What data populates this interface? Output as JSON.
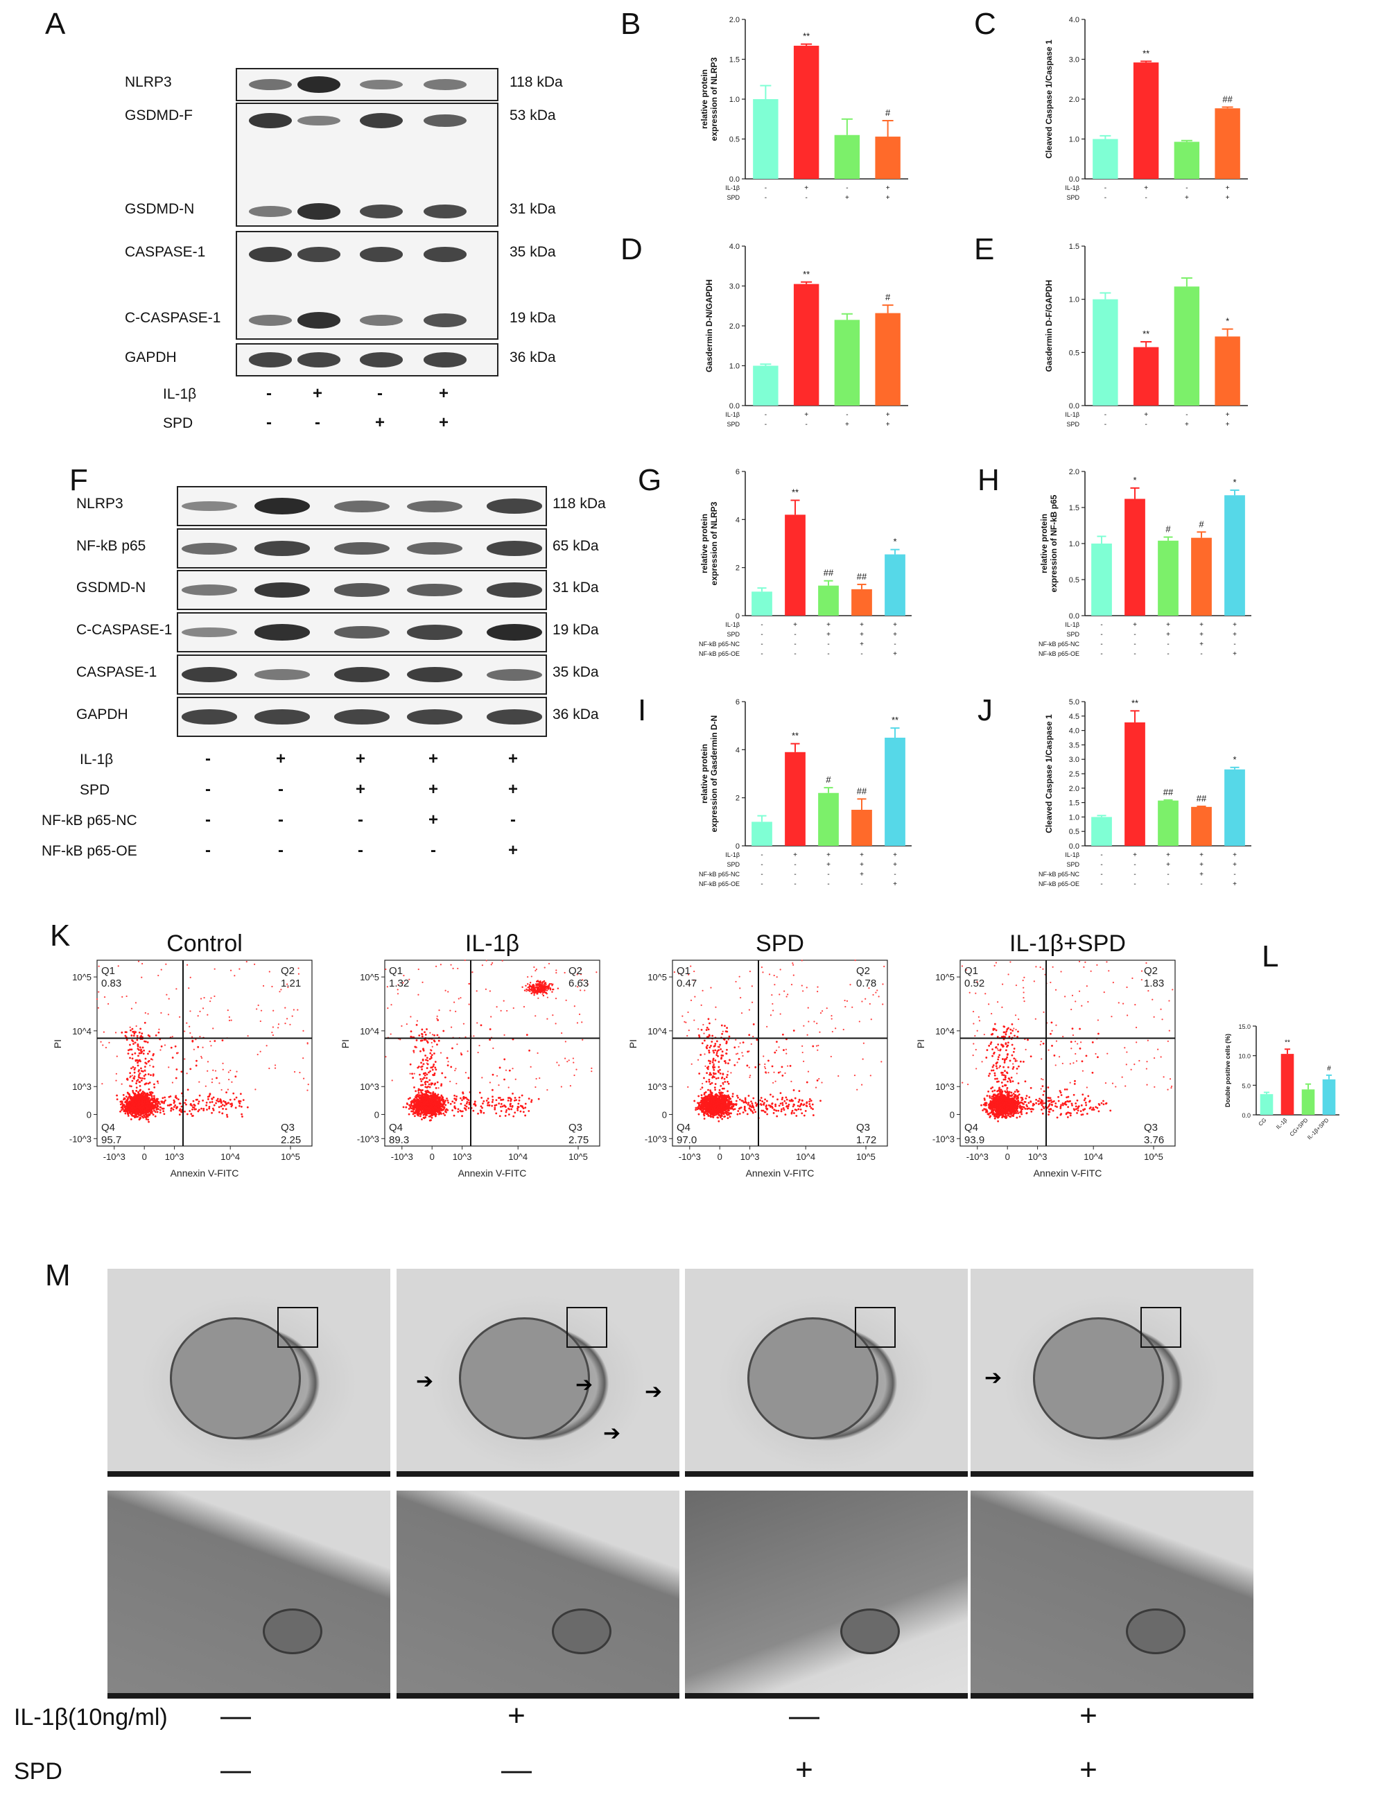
{
  "panels": {
    "A": "A",
    "B": "B",
    "C": "C",
    "D": "D",
    "E": "E",
    "F": "F",
    "G": "G",
    "H": "H",
    "I": "I",
    "J": "J",
    "K": "K",
    "L": "L",
    "M": "M"
  },
  "blotA": {
    "rows": [
      {
        "label": "NLRP3",
        "kda": "118 kDa"
      },
      {
        "label": "GSDMD-F",
        "kda": "53 kDa"
      },
      {
        "label": "GSDMD-N",
        "kda": "31 kDa"
      },
      {
        "label": "CASPASE-1",
        "kda": "35 kDa"
      },
      {
        "label": "C-CASPASE-1",
        "kda": "19 kDa"
      },
      {
        "label": "GAPDH",
        "kda": "36 kDa"
      }
    ],
    "treatments": [
      {
        "label": "IL-1β",
        "signs": [
          "-",
          "+",
          "-",
          "+"
        ]
      },
      {
        "label": "SPD",
        "signs": [
          "-",
          "-",
          "+",
          "+"
        ]
      }
    ]
  },
  "blotF": {
    "rows": [
      {
        "label": "NLRP3",
        "kda": "118 kDa"
      },
      {
        "label": "NF-kB p65",
        "kda": "65 kDa"
      },
      {
        "label": "GSDMD-N",
        "kda": "31 kDa"
      },
      {
        "label": "C-CASPASE-1",
        "kda": "19 kDa"
      },
      {
        "label": "CASPASE-1",
        "kda": "35 kDa"
      },
      {
        "label": "GAPDH",
        "kda": "36 kDa"
      }
    ],
    "treatments": [
      {
        "label": "IL-1β",
        "signs": [
          "-",
          "+",
          "+",
          "+",
          "+"
        ]
      },
      {
        "label": "SPD",
        "signs": [
          "-",
          "-",
          "+",
          "+",
          "+"
        ]
      },
      {
        "label": "NF-kB p65-NC",
        "signs": [
          "-",
          "-",
          "-",
          "+",
          "-"
        ]
      },
      {
        "label": "NF-kB p65-OE",
        "signs": [
          "-",
          "-",
          "-",
          "-",
          "+"
        ]
      }
    ]
  },
  "colors": {
    "group1": "#7fffd4",
    "group2": "#ff2a2a",
    "group3": "#7cf06a",
    "group4": "#ff6a2a",
    "group5": "#56d8e8"
  },
  "chart_data": [
    {
      "id": "B",
      "type": "bar",
      "ylabel": "relative protein expression of NLRP3",
      "ylim": [
        0,
        2.0
      ],
      "yticks": [
        "0.0",
        "0.5",
        "1.0",
        "1.5",
        "2.0"
      ],
      "values": [
        1.0,
        1.67,
        0.55,
        0.53
      ],
      "errors": [
        0.17,
        0.02,
        0.2,
        0.2
      ],
      "annotations": [
        "",
        "**",
        "",
        "#"
      ],
      "treatments": [
        {
          "label": "IL-1β",
          "signs": [
            "-",
            "+",
            "-",
            "+"
          ]
        },
        {
          "label": "SPD",
          "signs": [
            "-",
            "-",
            "+",
            "+"
          ]
        }
      ]
    },
    {
      "id": "C",
      "type": "bar",
      "ylabel": "Cleaved Caspase 1/Caspase 1",
      "ylim": [
        0,
        4.0
      ],
      "yticks": [
        "0.0",
        "1.0",
        "2.0",
        "3.0",
        "4.0"
      ],
      "values": [
        1.0,
        2.92,
        0.93,
        1.77
      ],
      "errors": [
        0.08,
        0.03,
        0.03,
        0.03
      ],
      "annotations": [
        "",
        "**",
        "",
        "##"
      ],
      "treatments": [
        {
          "label": "IL-1β",
          "signs": [
            "-",
            "+",
            "-",
            "+"
          ]
        },
        {
          "label": "SPD",
          "signs": [
            "-",
            "-",
            "+",
            "+"
          ]
        }
      ]
    },
    {
      "id": "D",
      "type": "bar",
      "ylabel": "Gasdermin D-N/GAPDH",
      "ylim": [
        0,
        4.0
      ],
      "yticks": [
        "0.0",
        "1.0",
        "2.0",
        "3.0",
        "4.0"
      ],
      "values": [
        1.0,
        3.05,
        2.15,
        2.32
      ],
      "errors": [
        0.04,
        0.05,
        0.15,
        0.2
      ],
      "annotations": [
        "",
        "**",
        "",
        "#"
      ],
      "treatments": [
        {
          "label": "IL-1β",
          "signs": [
            "-",
            "+",
            "-",
            "+"
          ]
        },
        {
          "label": "SPD",
          "signs": [
            "-",
            "-",
            "+",
            "+"
          ]
        }
      ]
    },
    {
      "id": "E",
      "type": "bar",
      "ylabel": "Gasdermin D-F/GAPDH",
      "ylim": [
        0,
        1.5
      ],
      "yticks": [
        "0.0",
        "0.5",
        "1.0",
        "1.5"
      ],
      "values": [
        1.0,
        0.55,
        1.12,
        0.65
      ],
      "errors": [
        0.06,
        0.05,
        0.08,
        0.07
      ],
      "annotations": [
        "",
        "**",
        "",
        "*"
      ],
      "treatments": [
        {
          "label": "IL-1β",
          "signs": [
            "-",
            "+",
            "-",
            "+"
          ]
        },
        {
          "label": "SPD",
          "signs": [
            "-",
            "-",
            "+",
            "+"
          ]
        }
      ]
    },
    {
      "id": "G",
      "type": "bar",
      "ylabel": "relative protein expression of NLRP3",
      "ylim": [
        0,
        6
      ],
      "yticks": [
        "0",
        "2",
        "4",
        "6"
      ],
      "values": [
        1.0,
        4.2,
        1.25,
        1.1,
        2.55
      ],
      "errors": [
        0.15,
        0.6,
        0.2,
        0.2,
        0.2
      ],
      "annotations": [
        "",
        "**",
        "##",
        "##",
        "*"
      ],
      "treatments": [
        {
          "label": "IL-1β",
          "signs": [
            "-",
            "+",
            "+",
            "+",
            "+"
          ]
        },
        {
          "label": "SPD",
          "signs": [
            "-",
            "-",
            "+",
            "+",
            "+"
          ]
        },
        {
          "label": "NF-kB p65-NC",
          "signs": [
            "-",
            "-",
            "-",
            "+",
            "-"
          ]
        },
        {
          "label": "NF-kB p65-OE",
          "signs": [
            "-",
            "-",
            "-",
            "-",
            "+"
          ]
        }
      ]
    },
    {
      "id": "H",
      "type": "bar",
      "ylabel": "relative protein expression of NF-kB p65",
      "ylim": [
        0,
        2.0
      ],
      "yticks": [
        "0.0",
        "0.5",
        "1.0",
        "1.5",
        "2.0"
      ],
      "values": [
        1.0,
        1.62,
        1.04,
        1.08,
        1.67
      ],
      "errors": [
        0.1,
        0.15,
        0.05,
        0.08,
        0.07
      ],
      "annotations": [
        "",
        "*",
        "#",
        "#",
        "*"
      ],
      "treatments": [
        {
          "label": "IL-1β",
          "signs": [
            "-",
            "+",
            "+",
            "+",
            "+"
          ]
        },
        {
          "label": "SPD",
          "signs": [
            "-",
            "-",
            "+",
            "+",
            "+"
          ]
        },
        {
          "label": "NF-kB p65-NC",
          "signs": [
            "-",
            "-",
            "-",
            "+",
            "-"
          ]
        },
        {
          "label": "NF-kB p65-OE",
          "signs": [
            "-",
            "-",
            "-",
            "-",
            "+"
          ]
        }
      ]
    },
    {
      "id": "I",
      "type": "bar",
      "ylabel": "relative protein expression of Gasdermin D-N",
      "ylim": [
        0,
        6
      ],
      "yticks": [
        "0",
        "2",
        "4",
        "6"
      ],
      "values": [
        1.0,
        3.9,
        2.2,
        1.5,
        4.5
      ],
      "errors": [
        0.25,
        0.35,
        0.22,
        0.45,
        0.4
      ],
      "annotations": [
        "",
        "**",
        "#",
        "##",
        "**"
      ],
      "treatments": [
        {
          "label": "IL-1β",
          "signs": [
            "-",
            "+",
            "+",
            "+",
            "+"
          ]
        },
        {
          "label": "SPD",
          "signs": [
            "-",
            "-",
            "+",
            "+",
            "+"
          ]
        },
        {
          "label": "NF-kB p65-NC",
          "signs": [
            "-",
            "-",
            "-",
            "+",
            "-"
          ]
        },
        {
          "label": "NF-kB p65-OE",
          "signs": [
            "-",
            "-",
            "-",
            "-",
            "+"
          ]
        }
      ]
    },
    {
      "id": "J",
      "type": "bar",
      "ylabel": "Cleaved Caspase 1/Caspase 1",
      "ylim": [
        0,
        5.0
      ],
      "yticks": [
        "0.0",
        "0.5",
        "1.0",
        "1.5",
        "2.0",
        "2.5",
        "3.0",
        "3.5",
        "4.0",
        "4.5",
        "5.0"
      ],
      "values": [
        1.0,
        4.28,
        1.57,
        1.35,
        2.65
      ],
      "errors": [
        0.05,
        0.4,
        0.02,
        0.02,
        0.07
      ],
      "annotations": [
        "",
        "**",
        "##",
        "##",
        "*"
      ],
      "treatments": [
        {
          "label": "IL-1β",
          "signs": [
            "-",
            "+",
            "+",
            "+",
            "+"
          ]
        },
        {
          "label": "SPD",
          "signs": [
            "-",
            "-",
            "+",
            "+",
            "+"
          ]
        },
        {
          "label": "NF-kB p65-NC",
          "signs": [
            "-",
            "-",
            "-",
            "+",
            "-"
          ]
        },
        {
          "label": "NF-kB p65-OE",
          "signs": [
            "-",
            "-",
            "-",
            "-",
            "+"
          ]
        }
      ]
    },
    {
      "id": "L",
      "type": "bar",
      "ylabel": "Double positive cells (%)",
      "ylim": [
        0,
        15.0
      ],
      "yticks": [
        "0.0",
        "5.0",
        "10.0",
        "15.0"
      ],
      "categories": [
        "CG",
        "IL-1β",
        "CG+SPD",
        "IL-1β+SPD"
      ],
      "values": [
        3.5,
        10.3,
        4.3,
        6.0
      ],
      "errors": [
        0.3,
        0.8,
        0.9,
        0.7
      ],
      "annotations": [
        "",
        "**",
        "",
        "#"
      ]
    }
  ],
  "flow": {
    "xlabel": "Annexin V-FITC",
    "ylabel": "PI",
    "yticks": [
      "10^5",
      "10^4",
      "10^3",
      "0",
      "-10^3"
    ],
    "xticks": [
      "-10^3",
      "0",
      "10^3",
      "10^4",
      "10^5"
    ],
    "plots": [
      {
        "title": "Control",
        "q1": "0.83",
        "q2": "1.21",
        "q3": "2.25",
        "q4": "95.7",
        "q2_cluster": false
      },
      {
        "title": "IL-1β",
        "q1": "1.32",
        "q2": "6.63",
        "q3": "2.75",
        "q4": "89.3",
        "q2_cluster": true
      },
      {
        "title": "SPD",
        "q1": "0.47",
        "q2": "0.78",
        "q3": "1.72",
        "q4": "97.0",
        "q2_cluster": false
      },
      {
        "title": "IL-1β+SPD",
        "q1": "0.52",
        "q2": "1.83",
        "q3": "3.76",
        "q4": "93.9",
        "q2_cluster": false
      }
    ],
    "quadrants": [
      "Q1",
      "Q2",
      "Q3",
      "Q4"
    ]
  },
  "em": {
    "treatments": [
      {
        "label": "IL-1β(10ng/ml)",
        "signs": [
          "—",
          "+",
          "—",
          "+"
        ]
      },
      {
        "label": "SPD",
        "signs": [
          "—",
          "—",
          "+",
          "+"
        ]
      }
    ]
  }
}
